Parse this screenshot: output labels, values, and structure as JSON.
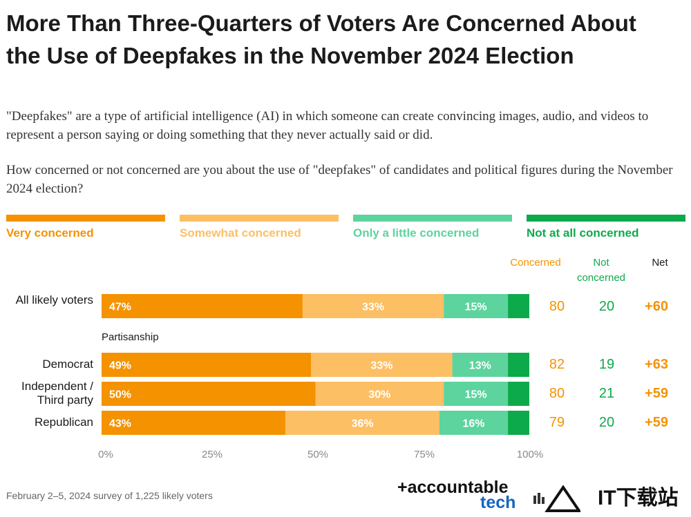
{
  "title": "More Than Three-Quarters of Voters Are Concerned About the Use of Deepfakes in the November 2024 Election",
  "subtitle": "\"Deepfakes\" are a type of artificial intelligence (AI) in which someone can create convincing images, audio, and videos to represent a person saying or doing something that they never actually said or did.",
  "question": "How concerned or not concerned are you about the use of \"deepfakes\" of candidates and political figures during the November 2024 election?",
  "legend": [
    {
      "label": "Very concerned",
      "color": "#f59200"
    },
    {
      "label": "Somewhat concerned",
      "color": "#fdbf63"
    },
    {
      "label": "Only a little concerned",
      "color": "#5dd39e"
    },
    {
      "label": "Not at all concerned",
      "color": "#0daa4b"
    }
  ],
  "columns": {
    "concerned": "Concerned",
    "not_concerned": "Not concerned",
    "net": "Net"
  },
  "group_label": "Partisanship",
  "chart_data": {
    "type": "bar",
    "orientation": "horizontal",
    "stacked": true,
    "categories": [
      "All likely voters",
      "Democrat",
      "Independent / Third party",
      "Republican"
    ],
    "series": [
      {
        "name": "Very concerned",
        "values": [
          47,
          49,
          50,
          43
        ],
        "labels": [
          "47%",
          "49%",
          "50%",
          "43%"
        ]
      },
      {
        "name": "Somewhat concerned",
        "values": [
          33,
          33,
          30,
          36
        ],
        "labels": [
          "33%",
          "33%",
          "30%",
          "36%"
        ]
      },
      {
        "name": "Only a little concerned",
        "values": [
          15,
          13,
          15,
          16
        ],
        "labels": [
          "15%",
          "13%",
          "15%",
          "16%"
        ]
      },
      {
        "name": "Not at all concerned",
        "values": [
          5,
          5,
          5,
          5
        ],
        "labels": [
          "",
          "",
          "",
          ""
        ]
      }
    ],
    "summary": [
      {
        "concerned": "80",
        "not_concerned": "20",
        "net": "+60"
      },
      {
        "concerned": "82",
        "not_concerned": "19",
        "net": "+63"
      },
      {
        "concerned": "80",
        "not_concerned": "21",
        "net": "+59"
      },
      {
        "concerned": "79",
        "not_concerned": "20",
        "net": "+59"
      }
    ],
    "xlim": [
      0,
      100
    ],
    "xticks": [
      "0%",
      "25%",
      "50%",
      "75%",
      "100%"
    ],
    "grid": false
  },
  "footer": {
    "note": "February 2–5, 2024 survey of 1,225 likely voters"
  },
  "brand": {
    "line1": "+accountable",
    "line2": "tech"
  },
  "watermark": {
    "text": "IT下载站"
  }
}
